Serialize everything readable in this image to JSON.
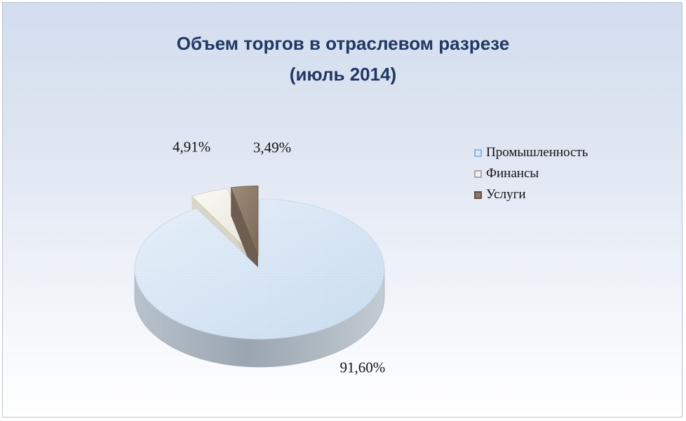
{
  "chart_data": {
    "type": "pie",
    "title": "Объем торгов в отраслевом разрезе",
    "subtitle": "(июль 2014)",
    "categories": [
      "Промышленность",
      "Финансы",
      "Услуги"
    ],
    "values": [
      91.6,
      4.91,
      3.49
    ],
    "data_labels": [
      "91,60%",
      "4,91%",
      "3,49%"
    ],
    "colors": [
      "#d9e7f7",
      "#f3f1ea",
      "#8d7b6a"
    ],
    "legend_position": "right",
    "exploded": true,
    "three_d": true
  }
}
